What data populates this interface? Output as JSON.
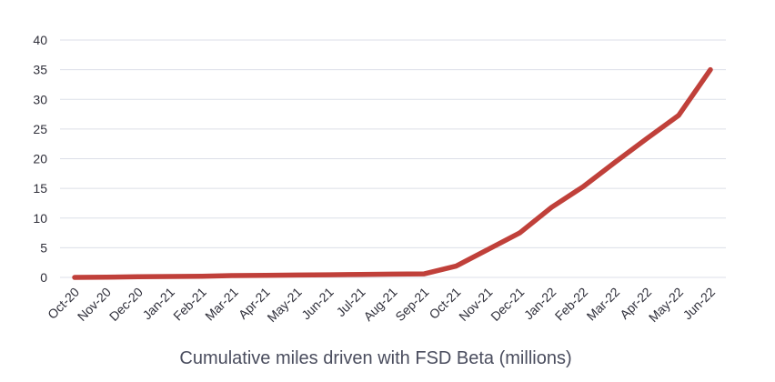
{
  "chart_data": {
    "type": "line",
    "title": "Cumulative miles driven with FSD Beta (millions)",
    "xlabel": "",
    "ylabel": "",
    "ylim": [
      0,
      40
    ],
    "yticks": [
      0,
      5,
      10,
      15,
      20,
      25,
      30,
      35,
      40
    ],
    "grid": true,
    "categories": [
      "Oct-20",
      "Nov-20",
      "Dec-20",
      "Jan-21",
      "Feb-21",
      "Mar-21",
      "Apr-21",
      "May-21",
      "Jun-21",
      "Jul-21",
      "Aug-21",
      "Sep-21",
      "Oct-21",
      "Nov-21",
      "Dec-21",
      "Jan-22",
      "Feb-22",
      "Mar-22",
      "Apr-22",
      "May-22",
      "Jun-22"
    ],
    "series": [
      {
        "name": "Cumulative miles driven with FSD Beta (millions)",
        "color": "#c0403a",
        "values": [
          0.0,
          0.05,
          0.1,
          0.15,
          0.2,
          0.3,
          0.35,
          0.4,
          0.45,
          0.5,
          0.55,
          0.6,
          1.9,
          4.7,
          7.5,
          11.8,
          15.3,
          19.4,
          23.4,
          27.3,
          35.0
        ]
      }
    ]
  }
}
